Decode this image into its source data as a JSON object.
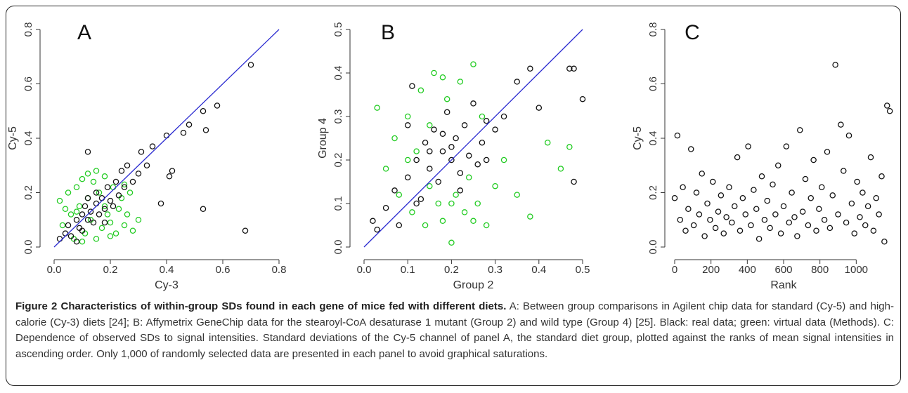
{
  "chart_data": [
    {
      "type": "scatter",
      "title": "A",
      "xlabel": "Cy-3",
      "ylabel": "Cy-5",
      "xlim": [
        0,
        0.8
      ],
      "ylim": [
        0,
        0.8
      ],
      "xticks": [
        {
          "value": 0,
          "label": "0.0"
        },
        0.2,
        0.4,
        0.6,
        0.8
      ],
      "yticks": [
        {
          "value": 0,
          "label": "0.0"
        },
        0.2,
        0.4,
        0.6,
        0.8
      ],
      "diagonal": {
        "color": "#2a2ad0"
      },
      "series": [
        {
          "color": "#22cc22",
          "x": [
            0.02,
            0.03,
            0.05,
            0.06,
            0.07,
            0.08,
            0.09,
            0.1,
            0.11,
            0.12,
            0.13,
            0.14,
            0.15,
            0.16,
            0.17,
            0.18,
            0.19,
            0.2,
            0.21,
            0.22,
            0.23,
            0.24,
            0.25,
            0.26,
            0.27,
            0.28,
            0.3,
            0.04,
            0.1,
            0.15,
            0.2,
            0.12,
            0.18,
            0.08,
            0.25
          ],
          "values": [
            0.17,
            0.08,
            0.2,
            0.12,
            0.03,
            0.22,
            0.15,
            0.25,
            0.05,
            0.18,
            0.1,
            0.24,
            0.03,
            0.2,
            0.07,
            0.26,
            0.12,
            0.09,
            0.22,
            0.05,
            0.14,
            0.18,
            0.08,
            0.12,
            0.2,
            0.06,
            0.1,
            0.14,
            0.02,
            0.28,
            0.04,
            0.27,
            0.15,
            0.13,
            0.23
          ]
        },
        {
          "color": "#111111",
          "x": [
            0.02,
            0.04,
            0.05,
            0.06,
            0.08,
            0.09,
            0.1,
            0.1,
            0.11,
            0.12,
            0.12,
            0.13,
            0.14,
            0.15,
            0.15,
            0.16,
            0.17,
            0.18,
            0.19,
            0.2,
            0.21,
            0.22,
            0.23,
            0.24,
            0.25,
            0.26,
            0.28,
            0.3,
            0.31,
            0.33,
            0.35,
            0.38,
            0.4,
            0.41,
            0.42,
            0.46,
            0.48,
            0.53,
            0.53,
            0.54,
            0.58,
            0.68,
            0.7,
            0.12,
            0.08,
            0.18
          ],
          "values": [
            0.03,
            0.05,
            0.08,
            0.04,
            0.1,
            0.07,
            0.12,
            0.06,
            0.15,
            0.1,
            0.18,
            0.13,
            0.09,
            0.16,
            0.2,
            0.12,
            0.18,
            0.14,
            0.22,
            0.17,
            0.15,
            0.24,
            0.19,
            0.28,
            0.22,
            0.3,
            0.24,
            0.27,
            0.35,
            0.3,
            0.37,
            0.16,
            0.41,
            0.26,
            0.28,
            0.42,
            0.45,
            0.14,
            0.5,
            0.43,
            0.52,
            0.06,
            0.67,
            0.35,
            0.02,
            0.09
          ]
        }
      ]
    },
    {
      "type": "scatter",
      "title": "B",
      "xlabel": "Group 2",
      "ylabel": "Group 4",
      "xlim": [
        0,
        0.5
      ],
      "ylim": [
        0,
        0.5
      ],
      "xticks": [
        {
          "value": 0,
          "label": "0.0"
        },
        0.1,
        0.2,
        0.3,
        0.4,
        0.5
      ],
      "yticks": [
        {
          "value": 0,
          "label": "0.0"
        },
        0.1,
        0.2,
        0.3,
        0.4,
        0.5
      ],
      "diagonal": {
        "color": "#2a2ad0"
      },
      "series": [
        {
          "color": "#22cc22",
          "x": [
            0.03,
            0.05,
            0.07,
            0.08,
            0.1,
            0.11,
            0.12,
            0.13,
            0.14,
            0.15,
            0.16,
            0.17,
            0.18,
            0.19,
            0.2,
            0.21,
            0.22,
            0.23,
            0.24,
            0.25,
            0.26,
            0.27,
            0.28,
            0.3,
            0.32,
            0.35,
            0.38,
            0.42,
            0.45,
            0.47,
            0.1,
            0.2,
            0.15,
            0.25,
            0.18
          ],
          "values": [
            0.32,
            0.18,
            0.25,
            0.12,
            0.3,
            0.08,
            0.22,
            0.36,
            0.05,
            0.14,
            0.4,
            0.1,
            0.06,
            0.34,
            0.01,
            0.12,
            0.38,
            0.08,
            0.16,
            0.42,
            0.1,
            0.3,
            0.05,
            0.14,
            0.2,
            0.12,
            0.07,
            0.24,
            0.18,
            0.23,
            0.2,
            0.1,
            0.28,
            0.06,
            0.39
          ]
        },
        {
          "color": "#111111",
          "x": [
            0.02,
            0.03,
            0.05,
            0.07,
            0.08,
            0.1,
            0.11,
            0.12,
            0.13,
            0.14,
            0.15,
            0.16,
            0.17,
            0.18,
            0.19,
            0.2,
            0.21,
            0.22,
            0.23,
            0.24,
            0.25,
            0.26,
            0.27,
            0.28,
            0.3,
            0.32,
            0.35,
            0.38,
            0.4,
            0.47,
            0.48,
            0.5,
            0.48,
            0.1,
            0.18,
            0.22,
            0.15,
            0.28,
            0.2,
            0.12
          ],
          "values": [
            0.06,
            0.04,
            0.09,
            0.13,
            0.05,
            0.16,
            0.37,
            0.2,
            0.11,
            0.24,
            0.18,
            0.27,
            0.15,
            0.22,
            0.31,
            0.2,
            0.25,
            0.17,
            0.28,
            0.21,
            0.33,
            0.19,
            0.24,
            0.29,
            0.27,
            0.3,
            0.38,
            0.41,
            0.32,
            0.41,
            0.41,
            0.34,
            0.15,
            0.28,
            0.26,
            0.13,
            0.22,
            0.2,
            0.23,
            0.1
          ]
        }
      ]
    },
    {
      "type": "scatter",
      "title": "C",
      "xlabel": "Rank",
      "ylabel": "Cy-5",
      "xlim": [
        0,
        1200
      ],
      "ylim": [
        0,
        0.8
      ],
      "xticks": [
        0,
        200,
        400,
        600,
        800,
        1000
      ],
      "yticks": [
        {
          "value": 0,
          "label": "0.0"
        },
        0.2,
        0.4,
        0.6,
        0.8
      ],
      "series": [
        {
          "color": "#111111",
          "x": [
            0,
            15,
            30,
            45,
            60,
            75,
            90,
            105,
            120,
            135,
            150,
            165,
            180,
            195,
            210,
            225,
            240,
            255,
            270,
            285,
            300,
            315,
            330,
            345,
            360,
            375,
            390,
            405,
            420,
            435,
            450,
            465,
            480,
            495,
            510,
            525,
            540,
            555,
            570,
            585,
            600,
            615,
            630,
            645,
            660,
            675,
            690,
            705,
            720,
            735,
            750,
            765,
            780,
            795,
            810,
            825,
            840,
            855,
            870,
            885,
            900,
            915,
            930,
            945,
            960,
            975,
            990,
            1005,
            1020,
            1035,
            1050,
            1065,
            1080,
            1095,
            1110,
            1125,
            1140,
            1155,
            1170,
            1185
          ],
          "values": [
            0.18,
            0.41,
            0.1,
            0.22,
            0.06,
            0.14,
            0.36,
            0.08,
            0.2,
            0.12,
            0.27,
            0.04,
            0.16,
            0.1,
            0.24,
            0.07,
            0.13,
            0.19,
            0.05,
            0.11,
            0.22,
            0.09,
            0.15,
            0.33,
            0.06,
            0.18,
            0.12,
            0.37,
            0.08,
            0.21,
            0.14,
            0.03,
            0.26,
            0.1,
            0.17,
            0.07,
            0.23,
            0.12,
            0.3,
            0.05,
            0.15,
            0.37,
            0.09,
            0.2,
            0.11,
            0.04,
            0.43,
            0.13,
            0.25,
            0.08,
            0.18,
            0.32,
            0.06,
            0.14,
            0.22,
            0.1,
            0.35,
            0.07,
            0.19,
            0.67,
            0.12,
            0.45,
            0.28,
            0.09,
            0.41,
            0.16,
            0.05,
            0.24,
            0.11,
            0.2,
            0.08,
            0.15,
            0.33,
            0.06,
            0.18,
            0.12,
            0.26,
            0.02,
            0.52,
            0.5
          ]
        }
      ]
    }
  ],
  "caption": {
    "title": "Figure 2 Characteristics of within-group SDs found in each gene of mice fed with different diets.",
    "text": "A: Between group comparisons in Agilent chip data for standard (Cy-5) and high-calorie (Cy-3) diets [24]; B: Affymetrix GeneChip data for the stearoyl-CoA desaturase 1 mutant (Group 2) and wild type (Group 4) [25]. Black: real data; green: virtual data (Methods). C: Dependence of observed SDs to signal intensities. Standard deviations of the Cy-5 channel of panel A, the standard diet group, plotted against the ranks of mean signal intensities in ascending order. Only 1,000 of randomly selected data are presented in each panel to avoid graphical saturations."
  }
}
